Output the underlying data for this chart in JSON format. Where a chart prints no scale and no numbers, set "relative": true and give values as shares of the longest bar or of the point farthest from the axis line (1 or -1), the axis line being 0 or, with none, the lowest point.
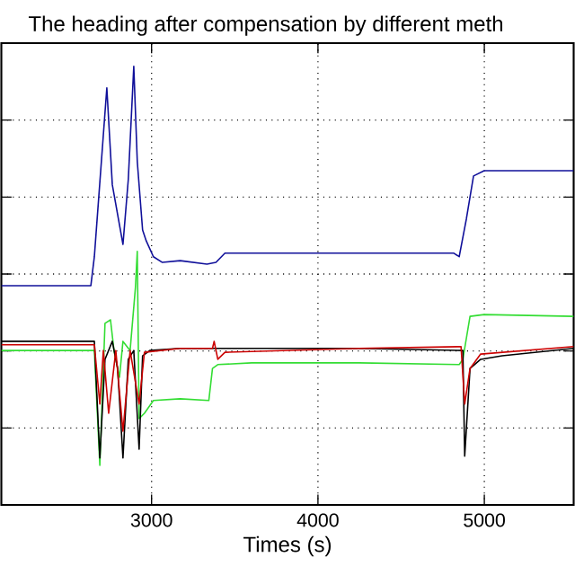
{
  "chart_data": {
    "type": "line",
    "title": "The heading after compensation by different meth",
    "xlabel": "Times (s)",
    "relative": true,
    "xlim": [
      2097,
      5537
    ],
    "xticks": [
      3000,
      4000,
      5000
    ],
    "tick_labels": "x",
    "grid": true,
    "marker": "none",
    "line_style": "solid",
    "series": [
      {
        "color": "#10109a",
        "x": [
          2097,
          2635,
          2656,
          2731,
          2764,
          2828,
          2860,
          2893,
          2914,
          2946,
          2968,
          3011,
          3065,
          3172,
          3333,
          3387,
          3441,
          3602,
          4247,
          4817,
          4849,
          4892,
          4935,
          4999,
          5537
        ],
        "values": [
          0.5,
          0.5,
          0.566,
          0.951,
          0.73,
          0.594,
          0.742,
          1,
          0.783,
          0.627,
          0.602,
          0.566,
          0.553,
          0.557,
          0.549,
          0.553,
          0.574,
          0.574,
          0.574,
          0.574,
          0.566,
          0.652,
          0.75,
          0.762,
          0.762
        ]
      },
      {
        "color": "#33dd33",
        "x": [
          2097,
          2656,
          2689,
          2720,
          2753,
          2774,
          2807,
          2828,
          2871,
          2903,
          2914,
          2925,
          2957,
          3011,
          3172,
          3344,
          3366,
          3398,
          3602,
          4247,
          4849,
          4871,
          4914,
          4999,
          5537
        ],
        "values": [
          0.352,
          0.352,
          0.09,
          0.414,
          0.422,
          0.352,
          0.291,
          0.373,
          0.352,
          0.496,
          0.578,
          0.197,
          0.209,
          0.238,
          0.242,
          0.238,
          0.311,
          0.32,
          0.324,
          0.324,
          0.32,
          0.332,
          0.43,
          0.434,
          0.43
        ]
      },
      {
        "color": "#000000",
        "x": [
          2097,
          2656,
          2689,
          2720,
          2764,
          2796,
          2828,
          2860,
          2893,
          2925,
          2946,
          2989,
          3172,
          3602,
          4247,
          4871,
          4882,
          4914,
          4978,
          5107,
          5537
        ],
        "values": [
          0.373,
          0.373,
          0.107,
          0.332,
          0.373,
          0.311,
          0.107,
          0.332,
          0.352,
          0.127,
          0.34,
          0.352,
          0.357,
          0.357,
          0.357,
          0.352,
          0.111,
          0.311,
          0.332,
          0.34,
          0.357
        ]
      },
      {
        "color": "#cc0000",
        "x": [
          2097,
          2656,
          2689,
          2710,
          2742,
          2785,
          2828,
          2871,
          2925,
          2957,
          3172,
          3366,
          3376,
          3398,
          3441,
          4247,
          4860,
          4882,
          4914,
          4978,
          5537
        ],
        "values": [
          0.365,
          0.365,
          0.23,
          0.352,
          0.209,
          0.352,
          0.168,
          0.352,
          0.23,
          0.348,
          0.357,
          0.357,
          0.373,
          0.332,
          0.348,
          0.357,
          0.361,
          0.23,
          0.311,
          0.344,
          0.361
        ]
      }
    ]
  }
}
